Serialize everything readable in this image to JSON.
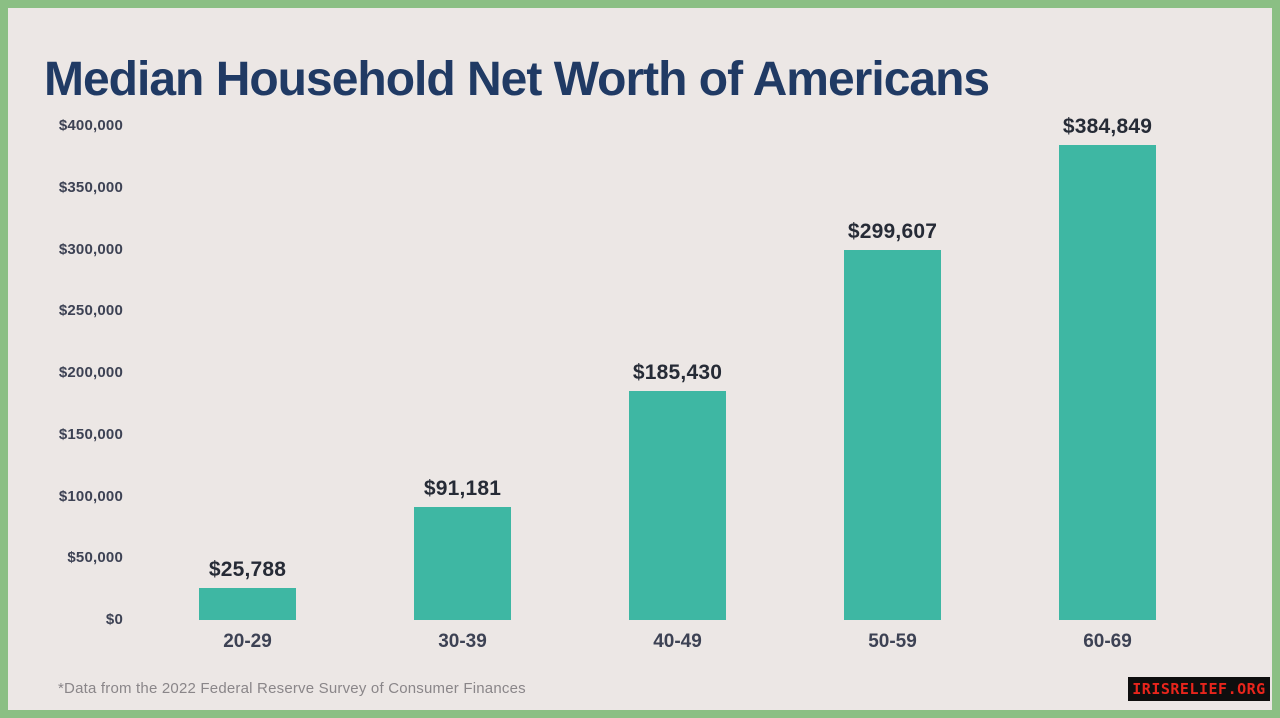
{
  "title": "Median Household Net Worth of Americans",
  "footnote": "*Data from the 2022 Federal Reserve Survey of Consumer Finances",
  "watermark": "IRISRELIEF.ORG",
  "colors": {
    "background": "#ece7e5",
    "border_green": "#8bbf84",
    "bar_teal": "#3eb7a3",
    "title_navy": "#203a64",
    "axis_text": "#3d4254",
    "value_text": "#262b36",
    "footnote_text": "#8a8689",
    "watermark_bg": "#0e0e0e",
    "watermark_red": "#e8251c"
  },
  "chart_data": {
    "type": "bar",
    "title": "Median Household Net Worth of Americans",
    "categories": [
      "20-29",
      "30-39",
      "40-49",
      "50-59",
      "60-69"
    ],
    "values": [
      25788,
      91181,
      185430,
      299607,
      384849
    ],
    "value_labels": [
      "$25,788",
      "$91,181",
      "$185,430",
      "$299,607",
      "$384,849"
    ],
    "y_ticks": [
      "$400,000",
      "$350,000",
      "$300,000",
      "$250,000",
      "$200,000",
      "$150,000",
      "$100,000",
      "$50,000",
      "$0"
    ],
    "y_tick_values": [
      400000,
      350000,
      300000,
      250000,
      200000,
      150000,
      100000,
      50000,
      0
    ],
    "ylim": [
      0,
      400000
    ],
    "xlabel": "",
    "ylabel": "",
    "grid": false,
    "legend": false,
    "bar_color": "#3eb7a3",
    "source_note": "*Data from the 2022 Federal Reserve Survey of Consumer Finances"
  }
}
